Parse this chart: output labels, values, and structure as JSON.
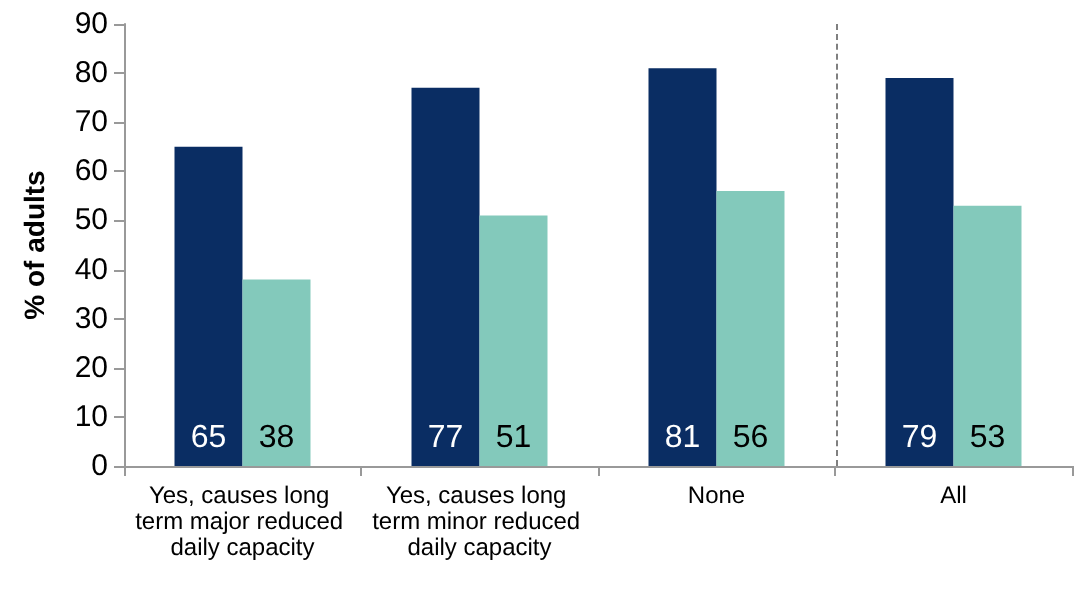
{
  "chart_data": {
    "type": "bar",
    "ylabel": "% of adults",
    "categories": [
      "Yes, causes long term major reduced daily capacity",
      "Yes, causes long term minor reduced daily capacity",
      "None",
      "All"
    ],
    "series": [
      {
        "color": "#0a2d63",
        "values": [
          65,
          77,
          81,
          79
        ]
      },
      {
        "color": "#83c9bb",
        "values": [
          38,
          51,
          56,
          53
        ]
      }
    ],
    "ylim": [
      0,
      90
    ],
    "yticks": [
      0,
      10,
      20,
      30,
      40,
      50,
      60,
      70,
      80,
      90
    ],
    "grid": false,
    "data_labels": true
  }
}
